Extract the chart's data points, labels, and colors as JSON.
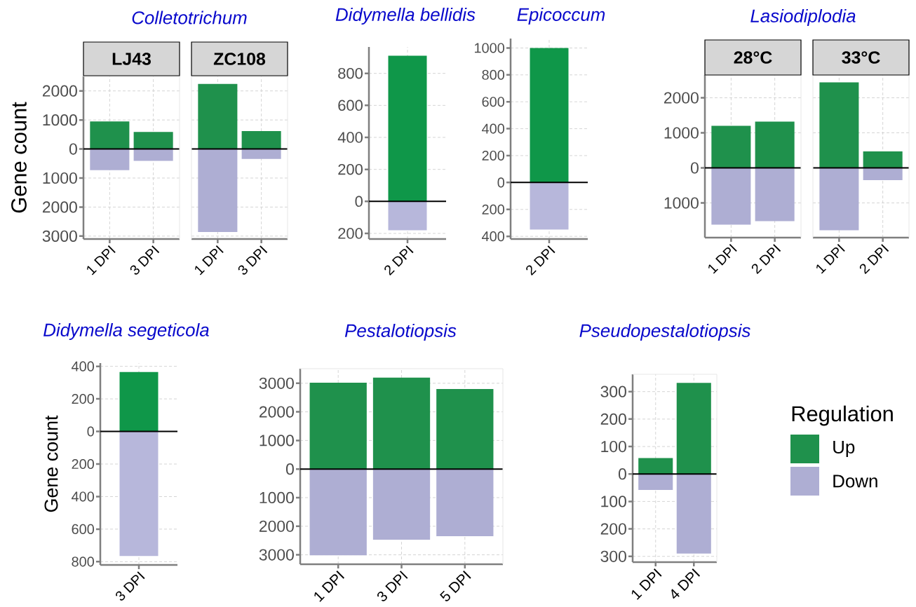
{
  "chart_data": [
    {
      "type": "bar",
      "title": "Colletotrichum",
      "subtitle": "LJ43",
      "ylabel": "Gene count",
      "categories": [
        "1 DPI",
        "3 DPI"
      ],
      "series": [
        {
          "color": "#1f914c",
          "values": [
            950,
            590
          ]
        },
        {
          "color": "#aeaed3",
          "values": [
            -730,
            -410
          ]
        }
      ],
      "stacked": true,
      "ylim": [
        -3100,
        2500
      ],
      "yticks": [
        {
          "value": -3000,
          "label": "3000"
        },
        {
          "value": -2000,
          "label": "2000"
        },
        {
          "value": -1000,
          "label": "1000"
        },
        0,
        1000,
        2000
      ],
      "grid": true,
      "ref_lines": [
        {
          "axis": "y",
          "value": 0,
          "color": "#000000"
        }
      ]
    },
    {
      "type": "bar",
      "subtitle": "ZC108",
      "categories": [
        "1 DPI",
        "3 DPI"
      ],
      "series": [
        {
          "color": "#1f914c",
          "values": [
            2240,
            620
          ]
        },
        {
          "color": "#aeaed3",
          "values": [
            -2860,
            -340
          ]
        }
      ],
      "stacked": true,
      "ylim": [
        -3100,
        2500
      ],
      "yticks": [
        {
          "value": -3000,
          "label": null
        },
        {
          "value": -2000,
          "label": null
        },
        {
          "value": -1000,
          "label": null
        },
        {
          "value": 0,
          "label": null
        },
        {
          "value": 1000,
          "label": null
        },
        {
          "value": 2000,
          "label": null
        }
      ],
      "grid": true,
      "tick_labels": "x",
      "ref_lines": [
        {
          "axis": "y",
          "value": 0,
          "color": "#000000"
        }
      ]
    },
    {
      "type": "bar",
      "title": "Didymella bellidis",
      "categories": [
        "2 DPI"
      ],
      "series": [
        {
          "color": "#0f9749",
          "values": [
            910
          ]
        },
        {
          "color": "#b7b7db",
          "values": [
            -180
          ]
        }
      ],
      "stacked": true,
      "ylim": [
        -235,
        965
      ],
      "yticks": [
        {
          "value": -200,
          "label": "200"
        },
        0,
        200,
        400,
        600,
        800
      ],
      "grid": true,
      "ref_lines": [
        {
          "axis": "y",
          "value": 0,
          "color": "#000000"
        }
      ]
    },
    {
      "type": "bar",
      "title": "Epicoccum",
      "categories": [
        "2 DPI"
      ],
      "series": [
        {
          "color": "#0f9749",
          "values": [
            1000
          ]
        },
        {
          "color": "#b7b7db",
          "values": [
            -350
          ]
        }
      ],
      "stacked": true,
      "ylim": [
        -420,
        1070
      ],
      "yticks": [
        {
          "value": -400,
          "label": "400"
        },
        {
          "value": -200,
          "label": "200"
        },
        0,
        200,
        400,
        600,
        800,
        1000
      ],
      "grid": true,
      "ref_lines": [
        {
          "axis": "y",
          "value": 0,
          "color": "#000000"
        }
      ]
    },
    {
      "type": "bar",
      "title": "Lasiodiplodia",
      "subtitle": "28°C",
      "categories": [
        "1 DPI",
        "2 DPI"
      ],
      "series": [
        {
          "color": "#1f914c",
          "values": [
            1200,
            1320
          ]
        },
        {
          "color": "#aeaed3",
          "values": [
            -1620,
            -1520
          ]
        }
      ],
      "stacked": true,
      "ylim": [
        -1990,
        2650
      ],
      "yticks": [
        {
          "value": -1000,
          "label": "1000"
        },
        0,
        1000,
        2000
      ],
      "grid": true,
      "ref_lines": [
        {
          "axis": "y",
          "value": 0,
          "color": "#000000"
        }
      ]
    },
    {
      "type": "bar",
      "subtitle": "33°C",
      "categories": [
        "1 DPI",
        "2 DPI"
      ],
      "series": [
        {
          "color": "#1f914c",
          "values": [
            2440,
            470
          ]
        },
        {
          "color": "#aeaed3",
          "values": [
            -1780,
            -350
          ]
        }
      ],
      "stacked": true,
      "ylim": [
        -1990,
        2650
      ],
      "yticks": [
        {
          "value": -1000,
          "label": null
        },
        {
          "value": 0,
          "label": null
        },
        {
          "value": 1000,
          "label": null
        },
        {
          "value": 2000,
          "label": null
        }
      ],
      "grid": true,
      "tick_labels": "x",
      "ref_lines": [
        {
          "axis": "y",
          "value": 0,
          "color": "#000000"
        }
      ]
    },
    {
      "type": "bar",
      "title": "Didymella segeticola",
      "ylabel": "Gene count",
      "categories": [
        "3 DPI"
      ],
      "series": [
        {
          "color": "#0f9749",
          "values": [
            365
          ]
        },
        {
          "color": "#b7b7db",
          "values": [
            -765
          ]
        }
      ],
      "stacked": true,
      "ylim": [
        -820,
        420
      ],
      "yticks": [
        {
          "value": -800,
          "label": "800"
        },
        {
          "value": -600,
          "label": "600"
        },
        {
          "value": -400,
          "label": "400"
        },
        {
          "value": -200,
          "label": "200"
        },
        0,
        200,
        400
      ],
      "grid": true,
      "ref_lines": [
        {
          "axis": "y",
          "value": 0,
          "color": "#000000"
        }
      ]
    },
    {
      "type": "bar",
      "title": "Pestalotiopsis",
      "categories": [
        "1 DPI",
        "3 DPI",
        "5 DPI"
      ],
      "series": [
        {
          "color": "#1f914c",
          "values": [
            3020,
            3200,
            2800
          ]
        },
        {
          "color": "#aeaed3",
          "values": [
            -3020,
            -2470,
            -2350
          ]
        }
      ],
      "stacked": true,
      "ylim": [
        -3330,
        3510
      ],
      "yticks": [
        {
          "value": -3000,
          "label": "3000"
        },
        {
          "value": -2000,
          "label": "2000"
        },
        {
          "value": -1000,
          "label": "1000"
        },
        0,
        1000,
        2000,
        3000
      ],
      "grid": true,
      "ref_lines": [
        {
          "axis": "y",
          "value": 0,
          "color": "#000000"
        }
      ]
    },
    {
      "type": "bar",
      "title": "Pseudopestalotiopsis",
      "categories": [
        "1 DPI",
        "4 DPI"
      ],
      "series": [
        {
          "name": "Up",
          "color": "#1f914c",
          "values": [
            58,
            332
          ]
        },
        {
          "name": "Down",
          "color": "#aeaed3",
          "values": [
            -58,
            -290
          ]
        }
      ],
      "stacked": true,
      "ylim": [
        -321,
        363
      ],
      "yticks": [
        300,
        200,
        100,
        0,
        {
          "value": -100,
          "label": "100"
        },
        {
          "value": -200,
          "label": "200"
        },
        {
          "value": -300,
          "label": "300"
        }
      ],
      "grid": true,
      "legend": "right",
      "legend_title": "Regulation",
      "ref_lines": [
        {
          "axis": "y",
          "value": 0,
          "color": "#000000"
        }
      ]
    }
  ]
}
